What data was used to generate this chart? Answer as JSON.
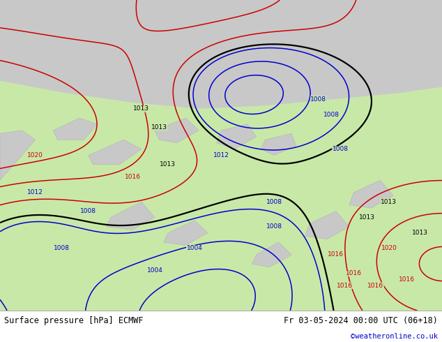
{
  "title_left": "Surface pressure [hPa] ECMWF",
  "title_right": "Fr 03-05-2024 00:00 UTC (06+18)",
  "credit": "©weatheronline.co.uk",
  "bg_green": "#c8e8a8",
  "bg_gray": "#c8c8c8",
  "bg_white": "#ffffff",
  "contour_black": "#000000",
  "contour_blue": "#0000cc",
  "contour_red": "#cc0000",
  "figsize": [
    6.34,
    4.9
  ],
  "dpi": 100
}
